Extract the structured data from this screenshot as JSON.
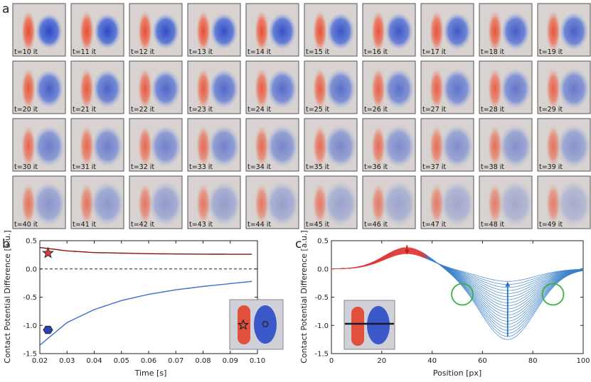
{
  "panel_labels": {
    "a": "a",
    "b": "b",
    "c": "c"
  },
  "panel_a": {
    "frames": [
      "t=10 it",
      "t=11 it",
      "t=12 it",
      "t=13 it",
      "t=14 it",
      "t=15 it",
      "t=16 it",
      "t=17 it",
      "t=18 it",
      "t=19 it",
      "t=20 it",
      "t=21 it",
      "t=22 it",
      "t=23 it",
      "t=24 it",
      "t=25 it",
      "t=26 it",
      "t=27 it",
      "t=28 it",
      "t=29 it",
      "t=30 it",
      "t=31 it",
      "t=32 it",
      "t=33 it",
      "t=34 it",
      "t=35 it",
      "t=36 it",
      "t=37 it",
      "t=38 it",
      "t=39 it",
      "t=40 it",
      "t=41 it",
      "t=42 it",
      "t=43 it",
      "t=44 it",
      "t=45 it",
      "t=46 it",
      "t=47 it",
      "t=48 it",
      "t=49 it"
    ],
    "colors": {
      "background": "#d8d3d0",
      "red": "#e8412a",
      "blue": "#2e4fc9"
    }
  },
  "chart_data": [
    {
      "type": "line",
      "panel": "b",
      "xlabel": "Time [s]",
      "ylabel": "Contact Potential Difference [a.u.]",
      "xlim": [
        0.02,
        0.1
      ],
      "ylim": [
        -1.5,
        0.5
      ],
      "xticks": [
        "0.02",
        "0.03",
        "0.04",
        "0.05",
        "0.06",
        "0.07",
        "0.08",
        "0.09",
        "0.10"
      ],
      "yticks": [
        "0.5",
        "0.0",
        "-0.5",
        "-1.0",
        "-1.5"
      ],
      "series": [
        {
          "name": "red",
          "color": "#8b1010",
          "x": [
            0.02,
            0.03,
            0.04,
            0.05,
            0.06,
            0.07,
            0.08,
            0.09,
            0.098
          ],
          "y": [
            0.38,
            0.32,
            0.29,
            0.28,
            0.27,
            0.265,
            0.262,
            0.26,
            0.26
          ]
        },
        {
          "name": "blue",
          "color": "#3a6fd0",
          "x": [
            0.02,
            0.03,
            0.04,
            0.05,
            0.06,
            0.07,
            0.08,
            0.09,
            0.098
          ],
          "y": [
            -1.35,
            -0.95,
            -0.72,
            -0.56,
            -0.45,
            -0.37,
            -0.31,
            -0.26,
            -0.22
          ]
        }
      ],
      "reference_line": {
        "y": 0.0,
        "style": "dashed"
      },
      "markers": [
        {
          "shape": "star",
          "x": 0.023,
          "y": 0.28,
          "color": "#e03a3a"
        },
        {
          "shape": "hexagon",
          "x": 0.023,
          "y": -1.08,
          "color": "#2945b5"
        }
      ]
    },
    {
      "type": "line",
      "panel": "c",
      "xlabel": "Position [px]",
      "ylabel": "Contact Potential Difference [a.u.]",
      "xlim": [
        0,
        100
      ],
      "ylim": [
        -1.5,
        0.5
      ],
      "xticks": [
        "0",
        "20",
        "40",
        "60",
        "80",
        "100"
      ],
      "yticks": [
        "0.5",
        "0.0",
        "-0.5",
        "-1.0",
        "-1.5"
      ],
      "family": {
        "count": 20,
        "red_peak_start": 0.38,
        "red_peak_end": 0.27,
        "blue_min_start": -1.25,
        "blue_min_end": -0.22,
        "red_color": "#e03a3a",
        "blue_color": "#3a7fc8"
      },
      "annotations": [
        {
          "type": "arrow",
          "direction": "down",
          "x": 30,
          "y_from": 0.42,
          "y_to": 0.28,
          "color": "#c02020"
        },
        {
          "type": "arrow",
          "direction": "up",
          "x": 70,
          "y_from": -1.2,
          "y_to": -0.25,
          "color": "#2a75c0"
        },
        {
          "type": "circle",
          "x": 52,
          "y": -0.45,
          "color": "#3cb043"
        },
        {
          "type": "circle",
          "x": 88,
          "y": -0.45,
          "color": "#3cb043"
        }
      ]
    }
  ]
}
